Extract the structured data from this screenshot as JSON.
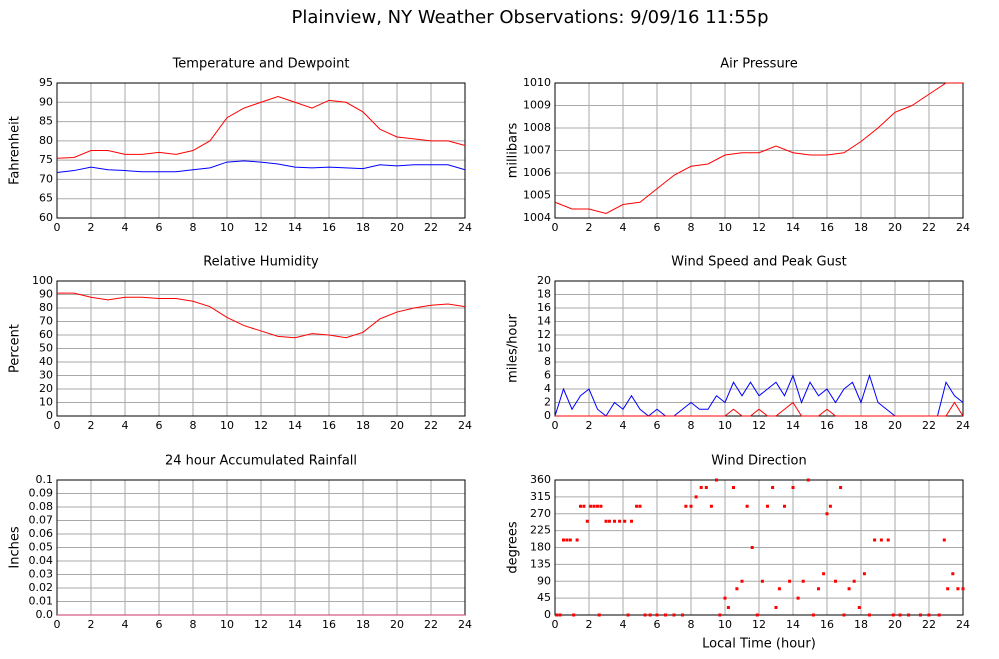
{
  "title": "Plainview, NY Weather Observations: 9/09/16 11:55p",
  "chart_data": [
    {
      "type": "line",
      "title": "Temperature and Dewpoint",
      "ylabel": "Fahrenheit",
      "grid": true,
      "xlim": [
        0,
        24
      ],
      "xticks": [
        0,
        2,
        4,
        6,
        8,
        10,
        12,
        14,
        16,
        18,
        20,
        22,
        24
      ],
      "ylim": [
        60,
        95
      ],
      "yticks": [
        60,
        65,
        70,
        75,
        80,
        85,
        90,
        95
      ],
      "x": [
        0,
        1,
        2,
        3,
        4,
        5,
        6,
        7,
        8,
        9,
        10,
        11,
        12,
        13,
        14,
        15,
        16,
        17,
        18,
        19,
        20,
        21,
        22,
        23,
        24
      ],
      "series": [
        {
          "color": "#ff0000",
          "values": [
            75.5,
            75.7,
            77.5,
            77.5,
            76.5,
            76.5,
            77,
            76.5,
            77.5,
            80,
            86,
            88.5,
            90,
            91.5,
            90,
            88.5,
            90.5,
            90,
            87.5,
            83,
            81,
            80.5,
            80,
            80,
            78.8
          ]
        },
        {
          "color": "#0000ff",
          "values": [
            71.8,
            72.3,
            73.2,
            72.5,
            72.3,
            72,
            72,
            72,
            72.5,
            73,
            74.5,
            74.8,
            74.5,
            74,
            73.2,
            73,
            73.2,
            73,
            72.8,
            73.8,
            73.5,
            73.8,
            73.8,
            73.8,
            72.5
          ]
        }
      ]
    },
    {
      "type": "line",
      "title": "Air Pressure",
      "ylabel": "millibars",
      "grid": true,
      "xlim": [
        0,
        24
      ],
      "xticks": [
        0,
        2,
        4,
        6,
        8,
        10,
        12,
        14,
        16,
        18,
        20,
        22,
        24
      ],
      "ylim": [
        1004,
        1010
      ],
      "yticks": [
        1004,
        1005,
        1006,
        1007,
        1008,
        1009,
        1010
      ],
      "x": [
        0,
        1,
        2,
        3,
        4,
        5,
        6,
        7,
        8,
        9,
        10,
        11,
        12,
        13,
        14,
        15,
        16,
        17,
        18,
        19,
        20,
        21,
        22,
        23,
        24
      ],
      "series": [
        {
          "color": "#ff0000",
          "values": [
            1004.7,
            1004.4,
            1004.4,
            1004.2,
            1004.6,
            1004.7,
            1005.3,
            1005.9,
            1006.3,
            1006.4,
            1006.8,
            1006.9,
            1006.9,
            1007.2,
            1006.9,
            1006.8,
            1006.8,
            1006.9,
            1007.4,
            1008,
            1008.7,
            1009,
            1009.5,
            1010,
            1010
          ]
        }
      ]
    },
    {
      "type": "line",
      "title": "Relative Humidity",
      "ylabel": "Percent",
      "grid": true,
      "xlim": [
        0,
        24
      ],
      "xticks": [
        0,
        2,
        4,
        6,
        8,
        10,
        12,
        14,
        16,
        18,
        20,
        22,
        24
      ],
      "ylim": [
        0,
        100
      ],
      "yticks": [
        0,
        10,
        20,
        30,
        40,
        50,
        60,
        70,
        80,
        90,
        100
      ],
      "x": [
        0,
        1,
        2,
        3,
        4,
        5,
        6,
        7,
        8,
        9,
        10,
        11,
        12,
        13,
        14,
        15,
        16,
        17,
        18,
        19,
        20,
        21,
        22,
        23,
        24
      ],
      "series": [
        {
          "color": "#ff0000",
          "values": [
            91,
            91,
            88,
            86,
            88,
            88,
            87,
            87,
            85,
            81,
            73,
            67,
            63,
            59,
            58,
            61,
            60,
            58,
            62,
            72,
            77,
            80,
            82,
            83,
            81
          ]
        }
      ]
    },
    {
      "type": "line",
      "title": "Wind Speed and Peak Gust",
      "ylabel": "miles/hour",
      "grid": true,
      "xlim": [
        0,
        24
      ],
      "xticks": [
        0,
        2,
        4,
        6,
        8,
        10,
        12,
        14,
        16,
        18,
        20,
        22,
        24
      ],
      "ylim": [
        0,
        20
      ],
      "yticks": [
        0,
        2,
        4,
        6,
        8,
        10,
        12,
        14,
        16,
        18,
        20
      ],
      "x": [
        0,
        0.5,
        1,
        1.5,
        2,
        2.5,
        3,
        3.5,
        4,
        4.5,
        5,
        5.5,
        6,
        6.5,
        7,
        7.5,
        8,
        8.5,
        9,
        9.5,
        10,
        10.5,
        11,
        11.5,
        12,
        12.5,
        13,
        13.5,
        14,
        14.5,
        15,
        15.5,
        16,
        16.5,
        17,
        17.5,
        18,
        18.5,
        19,
        19.5,
        20,
        20.5,
        21,
        21.5,
        22,
        22.5,
        23,
        23.5,
        24
      ],
      "series": [
        {
          "color": "#0000ff",
          "values": [
            0,
            4,
            1,
            3,
            4,
            1,
            0,
            2,
            1,
            3,
            1,
            0,
            1,
            0,
            0,
            1,
            2,
            1,
            1,
            3,
            2,
            5,
            3,
            5,
            3,
            4,
            5,
            3,
            6,
            2,
            5,
            3,
            4,
            2,
            4,
            5,
            2,
            6,
            2,
            1,
            0,
            0,
            0,
            0,
            0,
            0,
            5,
            3,
            2
          ]
        },
        {
          "color": "#ff0000",
          "values": [
            0,
            0,
            0,
            0,
            0,
            0,
            0,
            0,
            0,
            0,
            0,
            0,
            0,
            0,
            0,
            0,
            0,
            0,
            0,
            0,
            0,
            1,
            0,
            0,
            1,
            0,
            0,
            1,
            2,
            0,
            0,
            0,
            1,
            0,
            0,
            0,
            0,
            0,
            0,
            0,
            0,
            0,
            0,
            0,
            0,
            0,
            0,
            2,
            0
          ]
        }
      ]
    },
    {
      "type": "line",
      "title": "24 hour Accumulated Rainfall",
      "ylabel": "Inches",
      "grid": true,
      "xlim": [
        0,
        24
      ],
      "xticks": [
        0,
        2,
        4,
        6,
        8,
        10,
        12,
        14,
        16,
        18,
        20,
        22,
        24
      ],
      "ylim": [
        0,
        0.1
      ],
      "yticks": [
        {
          "value": 0,
          "label": "0.0"
        },
        0.01,
        0.02,
        0.03,
        0.04,
        0.05,
        0.06,
        0.07,
        0.08,
        0.09,
        0.1
      ],
      "x": [
        0,
        24
      ],
      "series": [
        {
          "color": "#cc3366",
          "values": [
            0,
            0
          ]
        }
      ]
    },
    {
      "type": "scatter",
      "title": "Wind Direction",
      "ylabel": "degrees",
      "xlabel": "Local Time (hour)",
      "grid": true,
      "xlim": [
        0,
        24
      ],
      "xticks": [
        0,
        2,
        4,
        6,
        8,
        10,
        12,
        14,
        16,
        18,
        20,
        22,
        24
      ],
      "ylim": [
        0,
        360
      ],
      "yticks": [
        0,
        45,
        90,
        135,
        180,
        225,
        270,
        315,
        360
      ],
      "x": [
        0.1,
        0.3,
        0.5,
        0.7,
        0.9,
        1.1,
        1.3,
        1.5,
        1.7,
        1.9,
        2.1,
        2.3,
        2.5,
        2.6,
        2.7,
        3.0,
        3.2,
        3.5,
        3.8,
        4.1,
        4.3,
        4.5,
        4.8,
        5.0,
        5.3,
        5.6,
        6.0,
        6.5,
        7.0,
        7.5,
        7.7,
        8.0,
        8.3,
        8.6,
        8.9,
        9.2,
        9.5,
        9.7,
        10.0,
        10.2,
        10.5,
        10.7,
        11.0,
        11.3,
        11.6,
        11.9,
        12.2,
        12.5,
        12.8,
        13.0,
        13.2,
        13.5,
        13.8,
        14.0,
        14.3,
        14.6,
        14.9,
        15.2,
        15.5,
        15.8,
        16.0,
        16.2,
        16.5,
        16.8,
        17.0,
        17.3,
        17.6,
        17.9,
        18.2,
        18.5,
        18.8,
        19.2,
        19.6,
        19.9,
        20.3,
        20.8,
        21.5,
        22.0,
        22.6,
        22.9,
        23.1,
        23.4,
        23.7,
        24.0
      ],
      "series": [
        {
          "color": "#ff0000",
          "values": [
            0,
            0,
            200,
            200,
            200,
            0,
            200,
            290,
            290,
            250,
            290,
            290,
            290,
            0,
            290,
            250,
            250,
            250,
            250,
            250,
            0,
            250,
            290,
            290,
            0,
            0,
            0,
            0,
            0,
            0,
            290,
            290,
            315,
            340,
            340,
            290,
            360,
            0,
            45,
            20,
            340,
            70,
            90,
            290,
            180,
            0,
            90,
            290,
            340,
            20,
            70,
            290,
            90,
            340,
            45,
            90,
            360,
            0,
            70,
            110,
            270,
            290,
            90,
            340,
            0,
            70,
            90,
            20,
            110,
            0,
            200,
            200,
            200,
            0,
            0,
            0,
            0,
            0,
            0,
            200,
            70,
            110,
            70,
            70
          ]
        }
      ]
    }
  ]
}
